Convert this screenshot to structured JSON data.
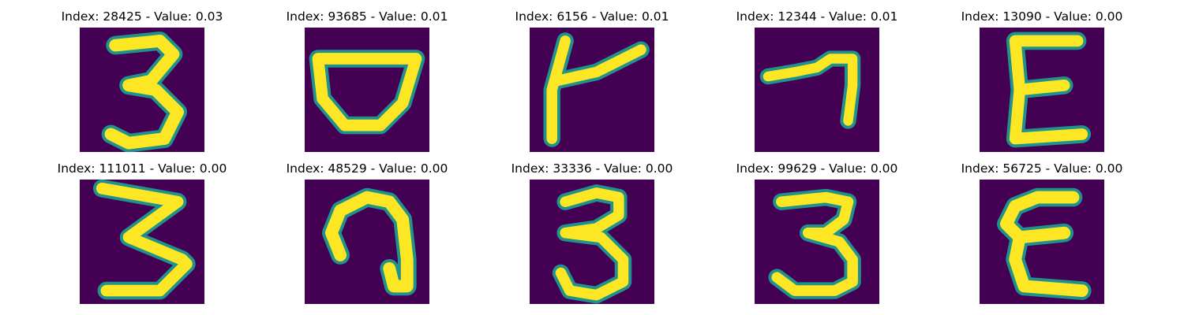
{
  "background_color": "#440154",
  "stroke_colors": [
    "#fde725",
    "#5ec962",
    "#21918c"
  ],
  "panels": [
    {
      "title": "Index: 28425 - Value: 0.03",
      "glyph": "digit-3"
    },
    {
      "title": "Index: 93685 - Value: 0.01",
      "glyph": "bowl"
    },
    {
      "title": "Index: 6156 - Value: 0.01",
      "glyph": "k-like"
    },
    {
      "title": "Index: 12344 - Value: 0.01",
      "glyph": "seven"
    },
    {
      "title": "Index: 13090 - Value: 0.00",
      "glyph": "letter-e"
    },
    {
      "title": "Index: 111011 - Value: 0.00",
      "glyph": "digit-3-zigzag"
    },
    {
      "title": "Index: 48529 - Value: 0.00",
      "glyph": "hook"
    },
    {
      "title": "Index: 33336 - Value: 0.00",
      "glyph": "digit-3"
    },
    {
      "title": "Index: 99629 - Value: 0.00",
      "glyph": "digit-3"
    },
    {
      "title": "Index: 56725 - Value: 0.00",
      "glyph": "letter-e"
    }
  ]
}
